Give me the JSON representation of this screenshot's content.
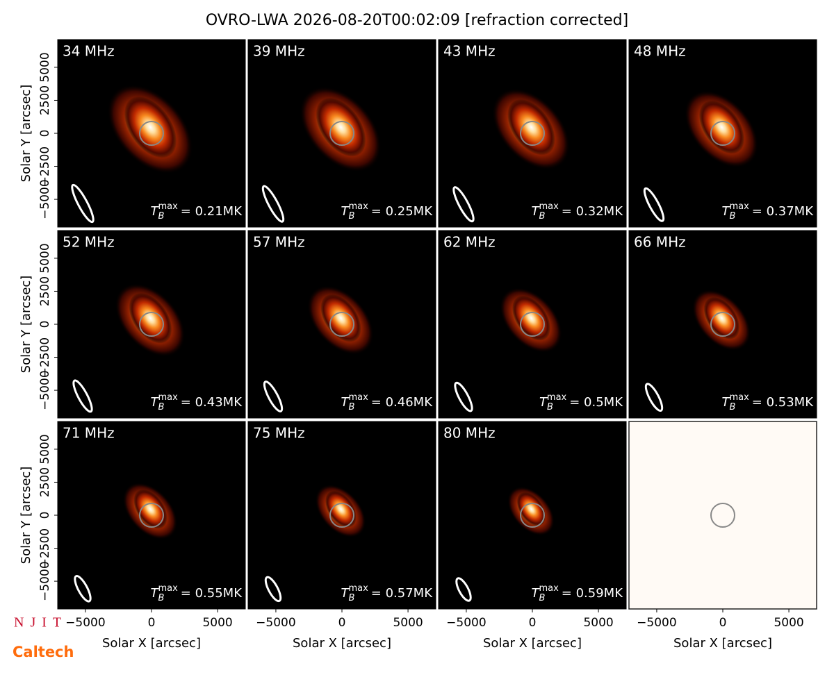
{
  "title": "OVRO-LWA 2026-08-20T00:02:09 [refraction corrected]",
  "x_axis_label": "Solar X [arcsec]",
  "y_axis_label": "Solar Y [arcsec]",
  "xlim": [
    -7100,
    7100
  ],
  "ylim": [
    -7100,
    7100
  ],
  "xticks": [
    {
      "value": -5000,
      "label": "−5000"
    },
    0,
    5000
  ],
  "yticks": [
    {
      "value": -5000,
      "label": "−5000"
    },
    {
      "value": -2500,
      "label": "−2500"
    },
    0,
    2500,
    5000
  ],
  "tb_symbol": {
    "base": "T",
    "subscript": "B",
    "superscript": "max"
  },
  "panels": [
    {
      "frequency": "34 MHz",
      "tb_max": "= 0.21MK"
    },
    {
      "frequency": "39 MHz",
      "tb_max": "= 0.25MK"
    },
    {
      "frequency": "43 MHz",
      "tb_max": "= 0.32MK"
    },
    {
      "frequency": "48 MHz",
      "tb_max": "= 0.37MK"
    },
    {
      "frequency": "52 MHz",
      "tb_max": "= 0.43MK"
    },
    {
      "frequency": "57 MHz",
      "tb_max": "= 0.46MK"
    },
    {
      "frequency": "62 MHz",
      "tb_max": "= 0.5MK"
    },
    {
      "frequency": "66 MHz",
      "tb_max": "= 0.53MK"
    },
    {
      "frequency": "71 MHz",
      "tb_max": "= 0.55MK"
    },
    {
      "frequency": "75 MHz",
      "tb_max": "= 0.57MK"
    },
    {
      "frequency": "80 MHz",
      "tb_max": "= 0.59MK"
    }
  ],
  "logos": [
    "NJIT",
    "Caltech"
  ]
}
